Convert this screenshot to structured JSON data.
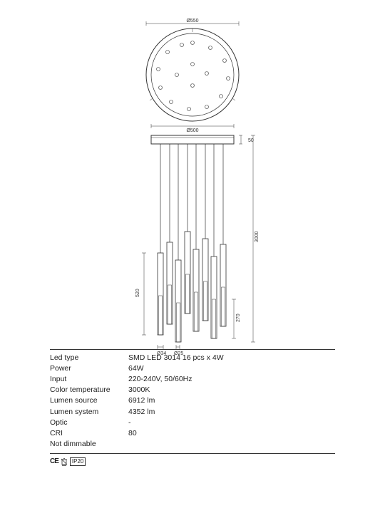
{
  "diagram": {
    "type": "technical-drawing",
    "top_circle": {
      "outer_diameter_label": "Ø550",
      "inner_diameter_label": "Ø500",
      "stroke": "#333333",
      "stroke_width": 1,
      "hole_count": 16
    },
    "side_view": {
      "mount_height_label": "50",
      "total_drop_label": "3000",
      "tube_length_label": "520",
      "inner_tube_label": "270",
      "tube_outer_dia": "Ø34",
      "tube_inner_dia": "Ø25",
      "base_width_label": "Ø500"
    },
    "colors": {
      "background": "#ffffff",
      "line": "#333333",
      "text": "#222222"
    }
  },
  "specs": {
    "rows": [
      {
        "label": "Led type",
        "value": "SMD LED 3014 16 pcs x 4W"
      },
      {
        "label": "Power",
        "value": "64W"
      },
      {
        "label": "Input",
        "value": "220-240V, 50/60Hz"
      },
      {
        "label": "Color temperature",
        "value": "3000K"
      },
      {
        "label": "Lumen source",
        "value": "6912 lm"
      },
      {
        "label": "Lumen system",
        "value": "4352 lm"
      },
      {
        "label": "Optic",
        "value": "-"
      },
      {
        "label": "CRI",
        "value": "80"
      },
      {
        "label": "Not dimmable",
        "value": ""
      }
    ],
    "certifications": {
      "ce": "CE",
      "ip": "IP20"
    }
  }
}
